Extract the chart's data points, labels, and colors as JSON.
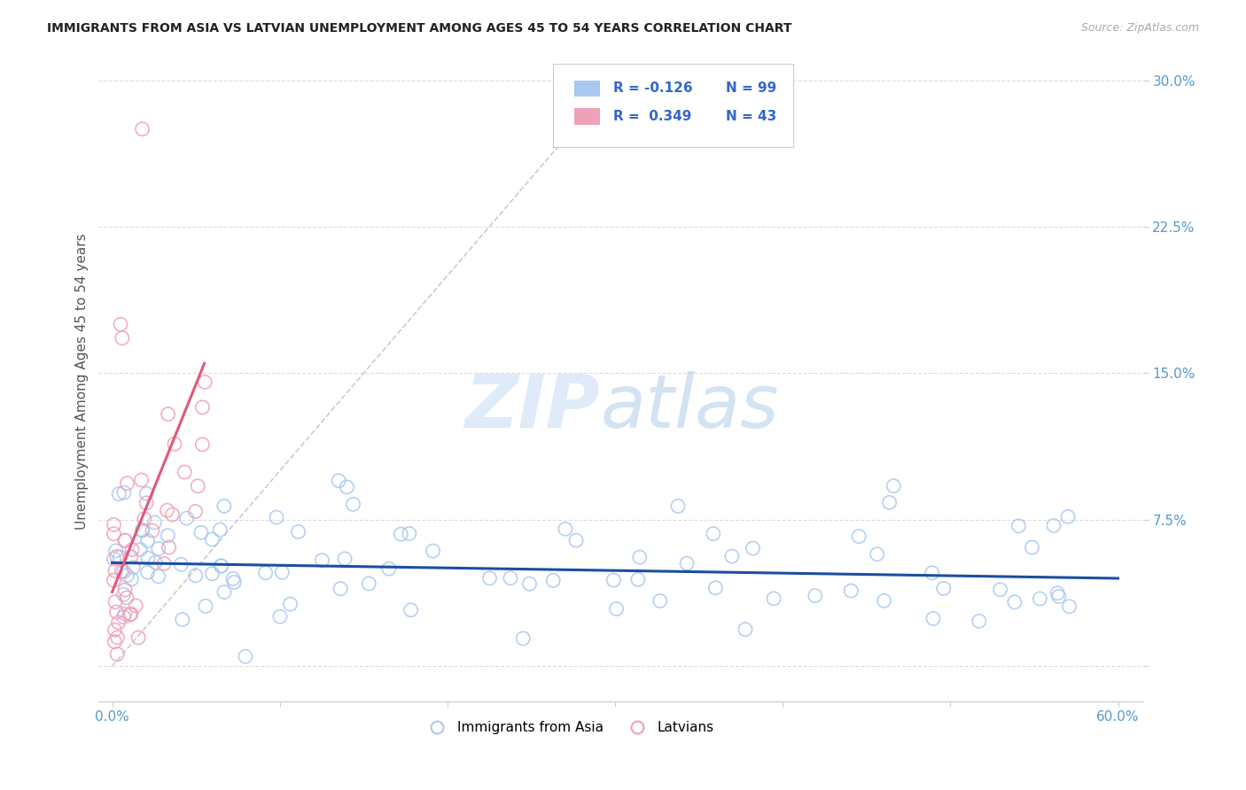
{
  "title": "IMMIGRANTS FROM ASIA VS LATVIAN UNEMPLOYMENT AMONG AGES 45 TO 54 YEARS CORRELATION CHART",
  "source": "Source: ZipAtlas.com",
  "ylabel": "Unemployment Among Ages 45 to 54 years",
  "xlim": [
    0.0,
    0.6
  ],
  "ylim": [
    0.0,
    0.3
  ],
  "yticks": [
    0.0,
    0.075,
    0.15,
    0.225,
    0.3
  ],
  "ytick_labels": [
    "",
    "7.5%",
    "15.0%",
    "22.5%",
    "30.0%"
  ],
  "xticks": [
    0.0,
    0.1,
    0.2,
    0.3,
    0.4,
    0.5,
    0.6
  ],
  "xtick_labels": [
    "0.0%",
    "",
    "",
    "",
    "",
    "",
    "60.0%"
  ],
  "blue_color": "#a8c8f0",
  "pink_color": "#f0a0b8",
  "blue_line_color": "#1a4fa0",
  "pink_line_color": "#e05878",
  "diag_line_color": "#cccccc",
  "grid_color": "#dddddd",
  "tick_label_color": "#5599cc",
  "title_color": "#222222",
  "ylabel_color": "#555555",
  "source_color": "#aaaaaa",
  "legend_R_color": "#3366cc",
  "background_color": "#ffffff",
  "blue_R": "-0.126",
  "blue_N": "99",
  "pink_R": "0.349",
  "pink_N": "43",
  "legend_label_blue": "Immigrants from Asia",
  "legend_label_pink": "Latvians",
  "blue_line_x": [
    0.0,
    0.6
  ],
  "blue_line_y": [
    0.053,
    0.045
  ],
  "pink_line_x": [
    0.0,
    0.055
  ],
  "pink_line_y": [
    0.038,
    0.155
  ],
  "diag_line_x": [
    0.0,
    0.3
  ],
  "diag_line_y": [
    0.0,
    0.3
  ]
}
